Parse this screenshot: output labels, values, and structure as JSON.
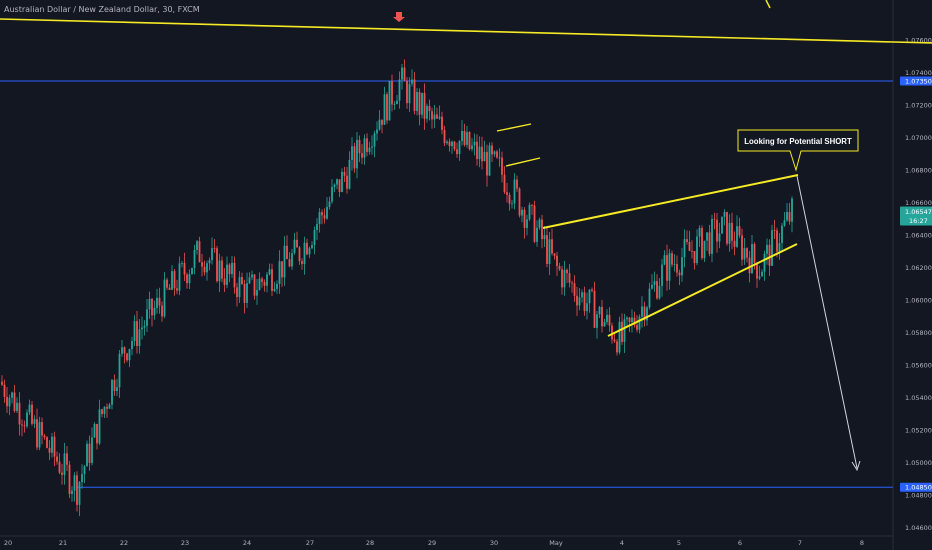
{
  "header": {
    "symbol_title": "Australian Dollar / New Zealand Dollar, 30, FXCM"
  },
  "annotations": {
    "callout": "Looking for Potential SHORT"
  },
  "price_badges": {
    "resistance": "1.07350",
    "support": "1.04850",
    "current_price": "1.06547",
    "countdown": "16:27"
  },
  "colors": {
    "background": "#131722",
    "bull": "#26a69a",
    "bear": "#ef5350",
    "trendline": "#f5ea24",
    "level_line": "#2962ff",
    "projection": "#d1d4dc",
    "marker": "#ef5350"
  },
  "chart_data": {
    "type": "candlestick",
    "title": "Australian Dollar / New Zealand Dollar, 30, FXCM",
    "ylim": [
      1.0455,
      1.0775
    ],
    "y_ticks": [
      "1.07600",
      "1.07400",
      "1.07200",
      "1.07000",
      "1.06800",
      "1.06600",
      "1.06400",
      "1.06200",
      "1.06000",
      "1.05800",
      "1.05600",
      "1.05400",
      "1.05200",
      "1.05000",
      "1.04800",
      "1.04600"
    ],
    "x_ticks": [
      "20",
      "21",
      "22",
      "23",
      "24",
      "27",
      "28",
      "29",
      "30",
      "May",
      "4",
      "5",
      "6",
      "7",
      "8"
    ],
    "horizontal_levels": [
      1.0735,
      1.0485
    ],
    "last_price": 1.06547,
    "key_points": [
      {
        "x": "20",
        "price": 1.055
      },
      {
        "x": "21",
        "price": 1.0485
      },
      {
        "x": "22",
        "price": 1.057
      },
      {
        "x": "23",
        "price": 1.063
      },
      {
        "x": "24",
        "price": 1.0605
      },
      {
        "x": "27",
        "price": 1.063
      },
      {
        "x": "28",
        "price": 1.0735
      },
      {
        "x": "29",
        "price": 1.071
      },
      {
        "x": "30",
        "price": 1.068
      },
      {
        "x": "30",
        "price": 1.064
      },
      {
        "x": "May",
        "price": 1.062
      },
      {
        "x": "4",
        "price": 1.0575
      },
      {
        "x": "5",
        "price": 1.062
      },
      {
        "x": "6",
        "price": 1.0645
      },
      {
        "x": "6",
        "price": 1.062
      },
      {
        "x": "7",
        "price": 1.06547
      }
    ]
  }
}
